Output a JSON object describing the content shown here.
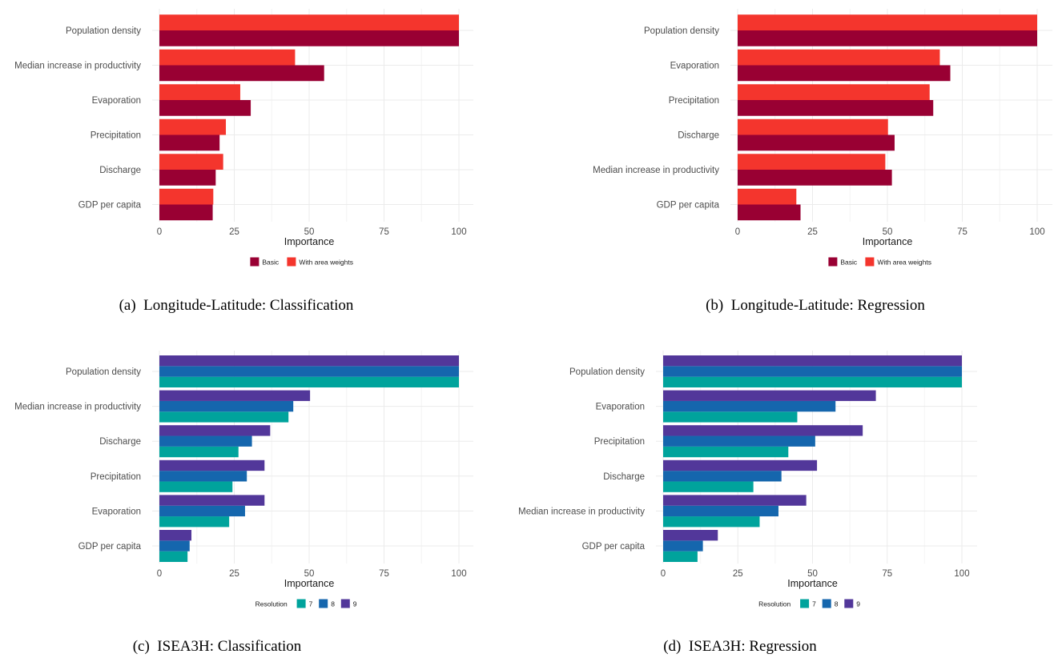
{
  "chart_data": [
    {
      "id": "a",
      "type": "bar",
      "orientation": "horizontal",
      "caption": "(a)  Longitude-Latitude: Classification",
      "xlabel": "Importance",
      "xlim": [
        0,
        100
      ],
      "xticks": [
        0,
        25,
        50,
        75,
        100
      ],
      "grid": true,
      "legend": {
        "placement": "bottom",
        "title": "",
        "entries": [
          "Basic",
          "With area weights"
        ]
      },
      "categories": [
        "Population density",
        "Median increase in productivity",
        "Evaporation",
        "Precipitation",
        "Discharge",
        "GDP per capita"
      ],
      "series": [
        {
          "name": "Basic",
          "color": "#990033",
          "values": [
            100,
            55.0,
            30.5,
            20.1,
            18.8,
            17.8
          ]
        },
        {
          "name": "With area weights",
          "color": "#F4352D",
          "values": [
            100,
            45.3,
            27.0,
            22.2,
            21.3,
            18.0
          ]
        }
      ]
    },
    {
      "id": "b",
      "type": "bar",
      "orientation": "horizontal",
      "caption": "(b)  Longitude-Latitude: Regression",
      "xlabel": "Importance",
      "xlim": [
        0,
        100
      ],
      "xticks": [
        0,
        25,
        50,
        75,
        100
      ],
      "grid": true,
      "legend": {
        "placement": "bottom",
        "title": "",
        "entries": [
          "Basic",
          "With area weights"
        ]
      },
      "categories": [
        "Population density",
        "Evaporation",
        "Precipitation",
        "Discharge",
        "Median increase in productivity",
        "GDP per capita"
      ],
      "series": [
        {
          "name": "Basic",
          "color": "#990033",
          "values": [
            100,
            71.0,
            65.3,
            52.4,
            51.5,
            21.0
          ]
        },
        {
          "name": "With area weights",
          "color": "#F4352D",
          "values": [
            100,
            67.5,
            64.1,
            50.2,
            49.3,
            19.6
          ]
        }
      ]
    },
    {
      "id": "c",
      "type": "bar",
      "orientation": "horizontal",
      "caption": "(c)  ISEA3H: Classification",
      "xlabel": "Importance",
      "xlim": [
        0,
        100
      ],
      "xticks": [
        0,
        25,
        50,
        75,
        100
      ],
      "grid": true,
      "legend": {
        "placement": "bottom",
        "title": "Resolution",
        "entries": [
          "7",
          "8",
          "9"
        ]
      },
      "categories": [
        "Population density",
        "Median increase in productivity",
        "Discharge",
        "Precipitation",
        "Evaporation",
        "GDP per capita"
      ],
      "series": [
        {
          "name": "7",
          "color": "#00A39C",
          "values": [
            100,
            43.1,
            26.4,
            24.4,
            23.3,
            9.4
          ]
        },
        {
          "name": "8",
          "color": "#1566AD",
          "values": [
            100,
            44.7,
            30.9,
            29.2,
            28.6,
            10.1
          ]
        },
        {
          "name": "9",
          "color": "#52379A",
          "values": [
            100,
            50.3,
            37.0,
            35.1,
            35.1,
            10.7
          ]
        }
      ]
    },
    {
      "id": "d",
      "type": "bar",
      "orientation": "horizontal",
      "caption": "(d)  ISEA3H: Regression",
      "xlabel": "Importance",
      "xlim": [
        0,
        100
      ],
      "xticks": [
        0,
        25,
        50,
        75,
        100
      ],
      "grid": true,
      "legend": {
        "placement": "bottom",
        "title": "Resolution",
        "entries": [
          "7",
          "8",
          "9"
        ]
      },
      "categories": [
        "Population density",
        "Evaporation",
        "Precipitation",
        "Discharge",
        "Median increase in productivity",
        "GDP per capita"
      ],
      "series": [
        {
          "name": "7",
          "color": "#00A39C",
          "values": [
            100,
            44.9,
            41.9,
            30.2,
            32.3,
            11.5
          ]
        },
        {
          "name": "8",
          "color": "#1566AD",
          "values": [
            100,
            57.7,
            50.9,
            39.6,
            38.6,
            13.3
          ]
        },
        {
          "name": "9",
          "color": "#52379A",
          "values": [
            100,
            71.2,
            66.8,
            51.5,
            47.9,
            18.3
          ]
        }
      ]
    }
  ]
}
